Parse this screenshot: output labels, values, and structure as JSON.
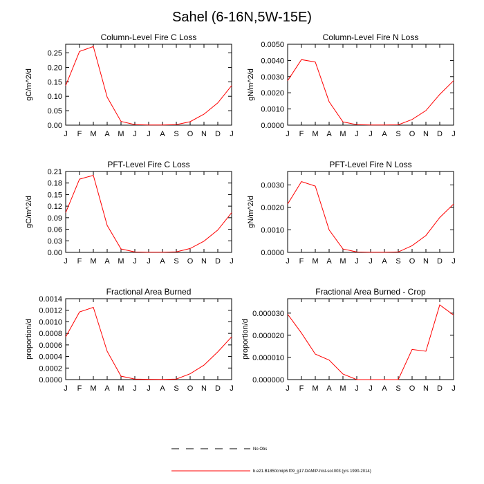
{
  "title": "Sahel (6-16N,5W-15E)",
  "months": [
    "J",
    "F",
    "M",
    "A",
    "M",
    "J",
    "J",
    "A",
    "S",
    "O",
    "N",
    "D",
    "J"
  ],
  "legend": {
    "obs_label": "No Obs",
    "model_label": "b.e21.B1850cmip6.f09_g17.DAMIP-hist-sol.003 (yrs 1990-2014)",
    "model_color": "#ff0000",
    "obs_color": "#000000"
  },
  "chart_data": [
    {
      "type": "line",
      "title": "Column-Level Fire C Loss",
      "ylabel": "gC/m^2/d",
      "ylim": [
        0,
        0.28
      ],
      "yticks": [
        "0.00",
        "0.05",
        "0.10",
        "0.15",
        "0.20",
        "0.25"
      ],
      "ytick_values": [
        0,
        0.05,
        0.1,
        0.15,
        0.2,
        0.25
      ],
      "x": [
        "J",
        "F",
        "M",
        "A",
        "M",
        "J",
        "J",
        "A",
        "S",
        "O",
        "N",
        "D",
        "J"
      ],
      "values": [
        0.137,
        0.255,
        0.272,
        0.097,
        0.013,
        0.002,
        0.0005,
        0.0004,
        0.002,
        0.012,
        0.038,
        0.077,
        0.137
      ]
    },
    {
      "type": "line",
      "title": "Column-Level Fire N Loss",
      "ylabel": "gN/m^2/d",
      "ylim": [
        0,
        0.005
      ],
      "yticks": [
        "0.0000",
        "0.0010",
        "0.0020",
        "0.0030",
        "0.0040",
        "0.0050"
      ],
      "ytick_values": [
        0,
        0.001,
        0.002,
        0.003,
        0.004,
        0.005
      ],
      "x": [
        "J",
        "F",
        "M",
        "A",
        "M",
        "J",
        "J",
        "A",
        "S",
        "O",
        "N",
        "D",
        "J"
      ],
      "values": [
        0.00275,
        0.00405,
        0.0039,
        0.00145,
        0.0002,
        3e-05,
        1e-05,
        1e-05,
        2e-05,
        0.00035,
        0.0009,
        0.0019,
        0.00275
      ]
    },
    {
      "type": "line",
      "title": "PFT-Level Fire C Loss",
      "ylabel": "gC/m^2/d",
      "ylim": [
        0,
        0.21
      ],
      "yticks": [
        "0.00",
        "0.03",
        "0.06",
        "0.09",
        "0.12",
        "0.15",
        "0.18",
        "0.21"
      ],
      "ytick_values": [
        0,
        0.03,
        0.06,
        0.09,
        0.12,
        0.15,
        0.18,
        0.21
      ],
      "x": [
        "J",
        "F",
        "M",
        "A",
        "M",
        "J",
        "J",
        "A",
        "S",
        "O",
        "N",
        "D",
        "J"
      ],
      "values": [
        0.103,
        0.19,
        0.2,
        0.07,
        0.009,
        0.001,
        0.0003,
        0.0003,
        0.0015,
        0.01,
        0.029,
        0.058,
        0.103
      ]
    },
    {
      "type": "line",
      "title": "PFT-Level Fire N Loss",
      "ylabel": "gN/m^2/d",
      "ylim": [
        0,
        0.0036
      ],
      "yticks": [
        "0.0000",
        "0.0010",
        "0.0020",
        "0.0030"
      ],
      "ytick_values": [
        0,
        0.001,
        0.002,
        0.003
      ],
      "x": [
        "J",
        "F",
        "M",
        "A",
        "M",
        "J",
        "J",
        "A",
        "S",
        "O",
        "N",
        "D",
        "J"
      ],
      "values": [
        0.00215,
        0.00315,
        0.00295,
        0.001,
        0.00015,
        2e-05,
        1e-05,
        1e-05,
        2e-05,
        0.0003,
        0.00075,
        0.00155,
        0.00215
      ]
    },
    {
      "type": "line",
      "title": "Fractional Area Burned",
      "ylabel": "proportion/d",
      "ylim": [
        0,
        0.0014
      ],
      "yticks": [
        "0.0000",
        "0.0002",
        "0.0004",
        "0.0006",
        "0.0008",
        "0.0010",
        "0.0012",
        "0.0014"
      ],
      "ytick_values": [
        0,
        0.0002,
        0.0004,
        0.0006,
        0.0008,
        0.001,
        0.0012,
        0.0014
      ],
      "x": [
        "J",
        "F",
        "M",
        "A",
        "M",
        "J",
        "J",
        "A",
        "S",
        "O",
        "N",
        "D",
        "J"
      ],
      "values": [
        0.00074,
        0.00117,
        0.00125,
        0.00049,
        6e-05,
        1e-05,
        5e-06,
        3e-06,
        1e-05,
        0.0001,
        0.00025,
        0.00048,
        0.00074
      ]
    },
    {
      "type": "line",
      "title": "Fractional Area Burned - Crop",
      "ylabel": "proportion/d",
      "ylim": [
        0,
        3.65e-05
      ],
      "yticks": [
        "0.000000",
        "0.000010",
        "0.000020",
        "0.000030"
      ],
      "ytick_values": [
        0,
        1e-05,
        2e-05,
        3e-05
      ],
      "x": [
        "J",
        "F",
        "M",
        "A",
        "M",
        "J",
        "J",
        "A",
        "S",
        "O",
        "N",
        "D",
        "J"
      ],
      "values": [
        2.95e-05,
        2.1e-05,
        1.15e-05,
        8.8e-06,
        2.5e-06,
        0,
        0,
        0,
        0,
        1.36e-05,
        1.28e-05,
        3.37e-05,
        2.91e-05
      ]
    }
  ]
}
